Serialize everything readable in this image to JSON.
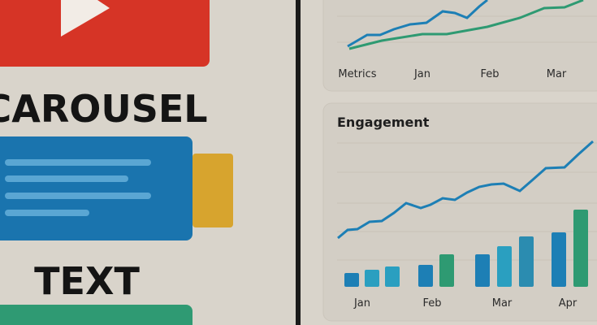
{
  "left_panel": {
    "heading": "CAROUSEL",
    "caption": "TEXT"
  },
  "metrics_card": {
    "labels": [
      "Metrics",
      "Jan",
      "Feb",
      "Mar"
    ]
  },
  "engagement_card": {
    "title": "Engagement",
    "labels": [
      "Jan",
      "Feb",
      "Mar",
      "Apr"
    ]
  }
}
